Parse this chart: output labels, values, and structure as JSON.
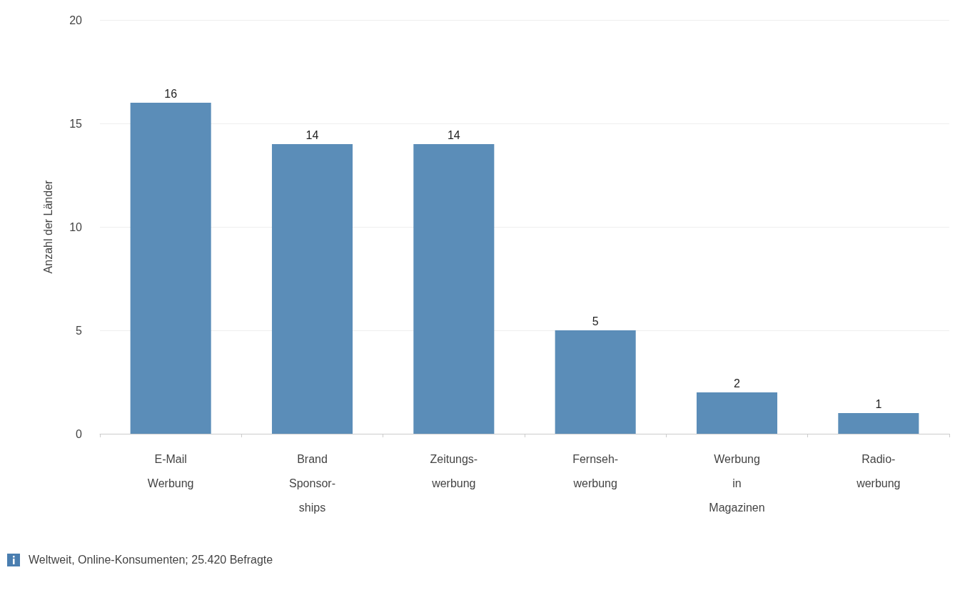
{
  "chart_data": {
    "type": "bar",
    "ylabel": "Anzahl der Länder",
    "categories": [
      "E-Mail\nWerbung",
      "Brand\nSponsor-\nships",
      "Zeitungs-\nwerbung",
      "Fernseh-\nwerbung",
      "Werbung\nin\nMagazinen",
      "Radio-\nwerbung"
    ],
    "values": [
      16,
      14,
      14,
      5,
      2,
      1
    ],
    "color": "#5b8db8",
    "ylim": [
      0,
      20
    ],
    "yticks": [
      0,
      5,
      10,
      15,
      20
    ],
    "grid": "y",
    "data_labels": true,
    "annotations": [
      "Weltweit, Online-Konsumenten; 25.420 Befragte"
    ]
  }
}
